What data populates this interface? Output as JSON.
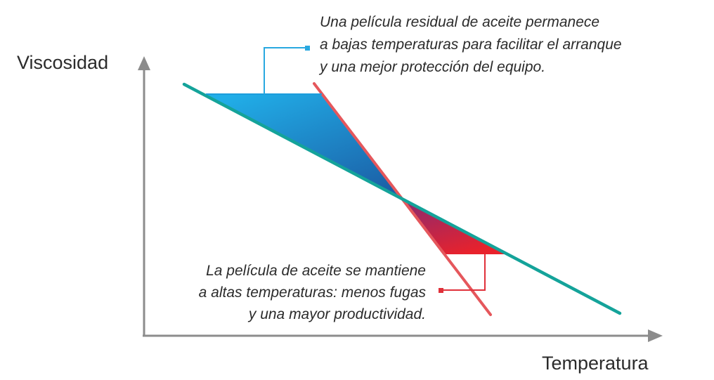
{
  "axes": {
    "y_label": "Viscosidad",
    "x_label": "Temperatura"
  },
  "annotations": {
    "top": [
      "Una película residual de aceite permanece",
      "a bajas temperaturas para facilitar el arranque",
      "y una mejor protección del equipo."
    ],
    "bottom": [
      "La película de aceite se mantiene",
      "a altas temperaturas: menos fugas",
      "y una mayor productividad."
    ]
  },
  "colors": {
    "teal_line": "#14a39a",
    "red_line": "#e5575c",
    "blue_fill_light": "#21aee8",
    "blue_fill_dark": "#1b5fa6",
    "red_fill_light": "#e8222c",
    "red_fill_dark": "#8a2a70",
    "axis": "#8c8c8c",
    "callout_blue": "#29a8e0",
    "callout_red": "#e0303a"
  }
}
